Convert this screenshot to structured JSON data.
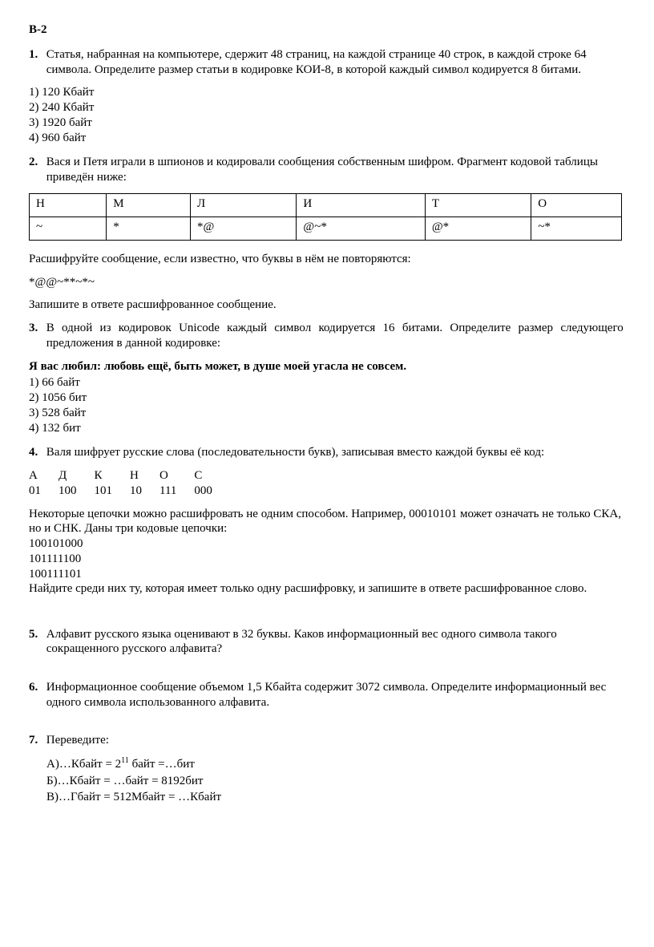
{
  "title": "В-2",
  "q1": {
    "num": "1.",
    "text": "Статья, набранная на компьютере, сдер­жит 48 страниц, на каждой странице 40 строк, в каждой строке 64 символа. Определите размер статьи в кодировке КОИ-8, в которой каждый символ кодируется 8 битами.",
    "a1": "1) 120 Кбайт",
    "a2": "2) 240 Кбайт",
    "a3": "3) 1920 байт",
    "a4": "4) 960 байт"
  },
  "q2": {
    "num": "2.",
    "text": "Вася и Петя играли в шпионов и кодировали сообщения собственным шифром. Фрагмент кодовой таблицы приведён ниже:",
    "row1": [
      "Н",
      "М",
      "Л",
      "И",
      "Т",
      "О"
    ],
    "row2": [
      "~",
      "*",
      "*@",
      "@~*",
      "@*",
      "~*"
    ],
    "after1": "Расшифруйте сообщение, если известно, что буквы в нём не повторяются:",
    "code": "*@@~**~*~",
    "after2": "Запишите в ответе расшифрованное сообщение."
  },
  "q3": {
    "num": "3.",
    "text": "В одной из кодировок Unicode каждый символ кодируется 16 битами. Определите размер следующего предложения в данной кодировке:",
    "sentence": "Я вас любил: любовь ещё, быть может, в душе моей угасла не совсем.",
    "a1": "1) 66 байт",
    "a2": "2) 1056 бит",
    "a3": "3) 528 байт",
    "a4": "4) 132 бит"
  },
  "q4": {
    "num": "4.",
    "text": "Валя шифрует русские слова (последовательности букв), записывая вместо каждой буквы её код:",
    "letters": [
      "А",
      "Д",
      "К",
      "Н",
      "О",
      "С"
    ],
    "codes": [
      "01",
      "100",
      "101",
      "10",
      "111",
      "000"
    ],
    "p1": "Некоторые цепочки можно расшифровать не одним способом. Например, 00010101 может означать не только СКА, но и СНК. Даны три кодовые цепочки:",
    "c1": "100101000",
    "c2": "101111100",
    "c3": "100111101",
    "p2": "Найдите среди них ту, которая имеет только одну расшифровку, и запишите в ответе расшифрованное слово."
  },
  "q5": {
    "num": "5.",
    "text": "Алфавит русского языка оценивают в 32 буквы. Каков информационный вес одного символа такого сокращенного русского алфавита?"
  },
  "q6": {
    "num": "6.",
    "text": "Информационное сообщение объемом 1,5 Кбайта содержит 3072 символа. Определите информационный вес одного символа использованного алфавита."
  },
  "q7": {
    "num": "7.",
    "text": "Переведите:",
    "a_pre": "А)…Кбайт = 2",
    "a_exp": "11",
    "a_post": " байт  =…бит",
    "b": "Б)…Кбайт = …байт = 8192бит",
    "v": "В)…Гбайт = 512Мбайт = …Кбайт"
  }
}
